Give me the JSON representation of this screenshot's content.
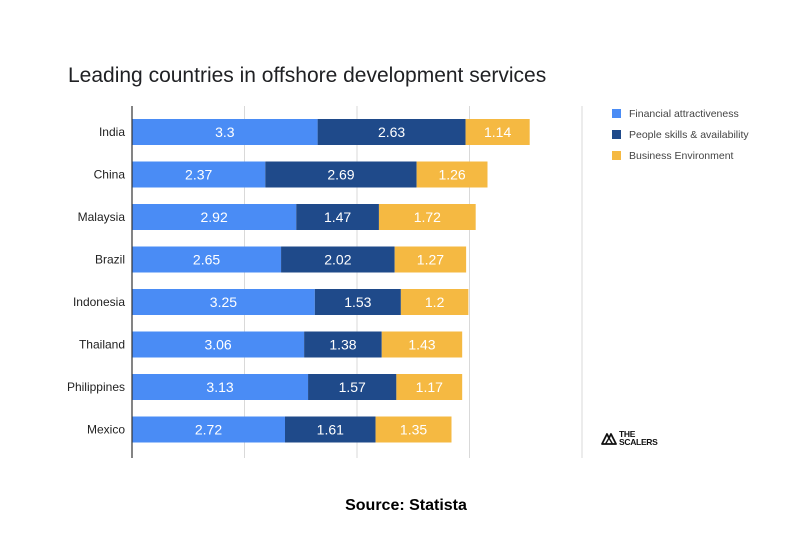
{
  "chart_data": {
    "type": "bar",
    "orientation": "horizontal",
    "stacked": true,
    "title": "Leading countries in offshore development services",
    "categories": [
      "India",
      "China",
      "Malaysia",
      "Brazil",
      "Indonesia",
      "Thailand",
      "Philippines",
      "Mexico"
    ],
    "series": [
      {
        "name": "Financial attractiveness",
        "color": "#4a8cf5",
        "values": [
          3.3,
          2.37,
          2.92,
          2.65,
          3.25,
          3.06,
          3.13,
          2.72
        ]
      },
      {
        "name": "People skills & availability",
        "color": "#1f4a8a",
        "values": [
          2.63,
          2.69,
          1.47,
          2.02,
          1.53,
          1.38,
          1.57,
          1.61
        ]
      },
      {
        "name": "Business Environment",
        "color": "#f5b942",
        "values": [
          1.14,
          1.26,
          1.72,
          1.27,
          1.2,
          1.43,
          1.17,
          1.35
        ]
      }
    ],
    "xlim": [
      0,
      8
    ],
    "xgrid_step": 2,
    "grid": true,
    "legend_position": "top-right",
    "xlabel": "",
    "ylabel": ""
  },
  "source": "Source: Statista",
  "watermark": {
    "line1": "THE",
    "line2": "SCALERS"
  }
}
